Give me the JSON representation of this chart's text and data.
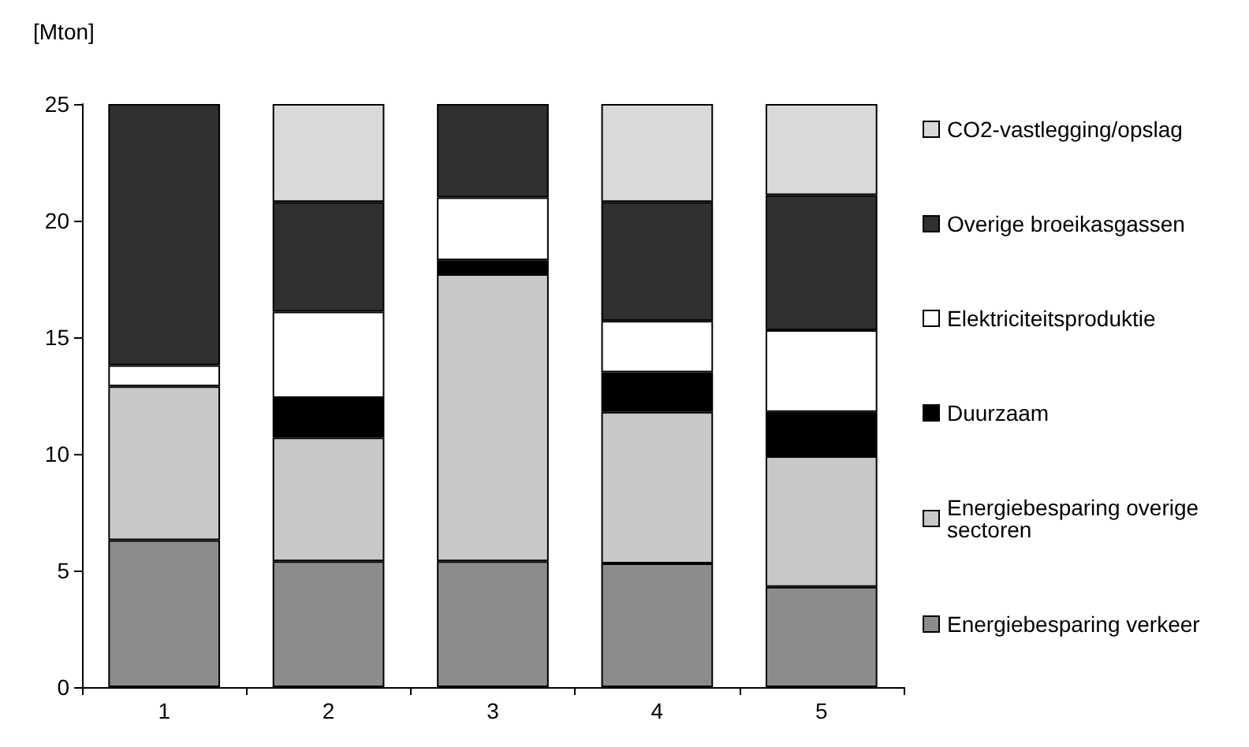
{
  "chart_data": {
    "type": "bar",
    "stacked": true,
    "ylabel": "[Mton]",
    "categories": [
      "1",
      "2",
      "3",
      "4",
      "5"
    ],
    "series": [
      {
        "name": "Energiebesparing verkeer",
        "color": "#8c8c8c",
        "values": [
          6.3,
          5.4,
          5.4,
          5.3,
          4.3
        ]
      },
      {
        "name": "Energiebesparing overige sectoren",
        "color": "#c8c8c8",
        "values": [
          6.6,
          5.3,
          12.3,
          6.5,
          5.6
        ]
      },
      {
        "name": "Duurzaam",
        "color": "#000000",
        "values": [
          0,
          1.7,
          0.6,
          1.7,
          1.9
        ]
      },
      {
        "name": "Elektriciteitsproduktie",
        "color": "#ffffff",
        "values": [
          0.9,
          3.7,
          2.7,
          2.2,
          3.5
        ]
      },
      {
        "name": "Overige broeikasgassen",
        "color": "#303030",
        "values": [
          11.2,
          4.7,
          4.0,
          5.1,
          5.8
        ]
      },
      {
        "name": "CO2-vastlegging/opslag",
        "color": "#d9d9d9",
        "values": [
          0,
          4.2,
          0,
          4.2,
          3.9
        ]
      }
    ],
    "ylim": [
      0,
      25
    ],
    "yticks": [
      0,
      5,
      10,
      15,
      20,
      25
    ],
    "grid": false,
    "legend": "right"
  }
}
